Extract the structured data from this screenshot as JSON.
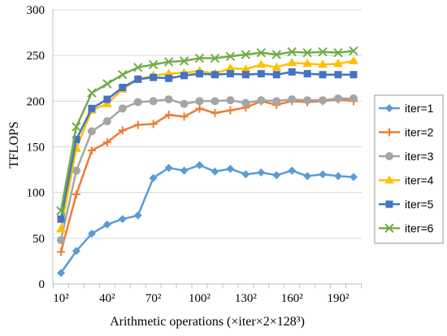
{
  "chart_data": {
    "type": "line",
    "xlabel": "Arithmetic operations (×iter×2×128³)",
    "ylabel": "TFLOPS",
    "ylim": [
      0,
      300
    ],
    "yticks": [
      0,
      50,
      100,
      150,
      200,
      250,
      300
    ],
    "xtick_labels": [
      "10²",
      "40²",
      "70²",
      "100²",
      "130²",
      "160²",
      "190²"
    ],
    "grid": "horizontal",
    "legend_position": "right",
    "x": [
      10,
      20,
      30,
      40,
      50,
      60,
      70,
      80,
      90,
      100,
      110,
      120,
      130,
      140,
      150,
      160,
      170,
      180,
      190,
      200
    ],
    "series": [
      {
        "name": "iter=1",
        "color": "#5B9BD5",
        "marker": "diamond",
        "values": [
          12,
          36,
          55,
          65,
          71,
          75,
          116,
          127,
          124,
          130,
          123,
          126,
          120,
          122,
          119,
          124,
          118,
          120,
          118,
          117
        ]
      },
      {
        "name": "iter=2",
        "color": "#ED7D31",
        "marker": "plus",
        "values": [
          35,
          98,
          146,
          155,
          168,
          174,
          175,
          185,
          183,
          192,
          187,
          190,
          193,
          200,
          196,
          200,
          199,
          200,
          202,
          200
        ]
      },
      {
        "name": "iter=3",
        "color": "#A5A5A5",
        "marker": "circle",
        "values": [
          48,
          124,
          167,
          178,
          192,
          199,
          200,
          202,
          197,
          200,
          200,
          201,
          198,
          201,
          200,
          202,
          201,
          201,
          203,
          203
        ]
      },
      {
        "name": "iter=4",
        "color": "#FFC000",
        "marker": "triangle",
        "values": [
          60,
          148,
          190,
          197,
          213,
          224,
          228,
          230,
          231,
          233,
          230,
          236,
          235,
          240,
          237,
          242,
          241,
          240,
          241,
          244
        ]
      },
      {
        "name": "iter=5",
        "color": "#4472C4",
        "marker": "square",
        "values": [
          71,
          158,
          192,
          202,
          215,
          224,
          226,
          225,
          228,
          230,
          229,
          230,
          229,
          230,
          229,
          232,
          230,
          229,
          229,
          229
        ]
      },
      {
        "name": "iter=6",
        "color": "#70AD47",
        "marker": "x",
        "values": [
          80,
          172,
          209,
          219,
          229,
          237,
          240,
          243,
          244,
          247,
          247,
          249,
          251,
          253,
          251,
          254,
          253,
          254,
          253,
          255
        ]
      }
    ]
  }
}
